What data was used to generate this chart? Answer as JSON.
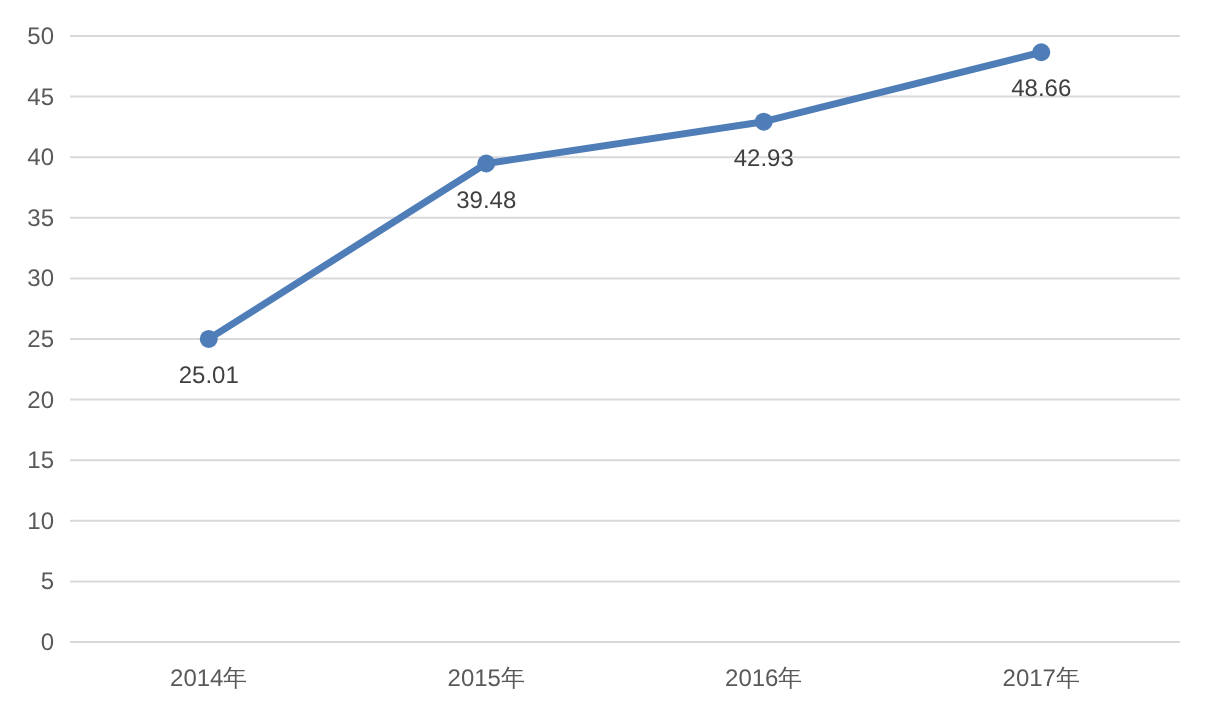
{
  "chart_data": {
    "type": "line",
    "categories": [
      "2014年",
      "2015年",
      "2016年",
      "2017年"
    ],
    "values": [
      25.01,
      39.48,
      42.93,
      48.66
    ],
    "color": "#4f7db8",
    "ylim": [
      0,
      50
    ],
    "yticks": [
      0,
      5,
      10,
      15,
      20,
      25,
      30,
      35,
      40,
      45,
      50
    ],
    "grid": "y",
    "marker": "circle",
    "line_style": "solid",
    "data_labels": true
  }
}
